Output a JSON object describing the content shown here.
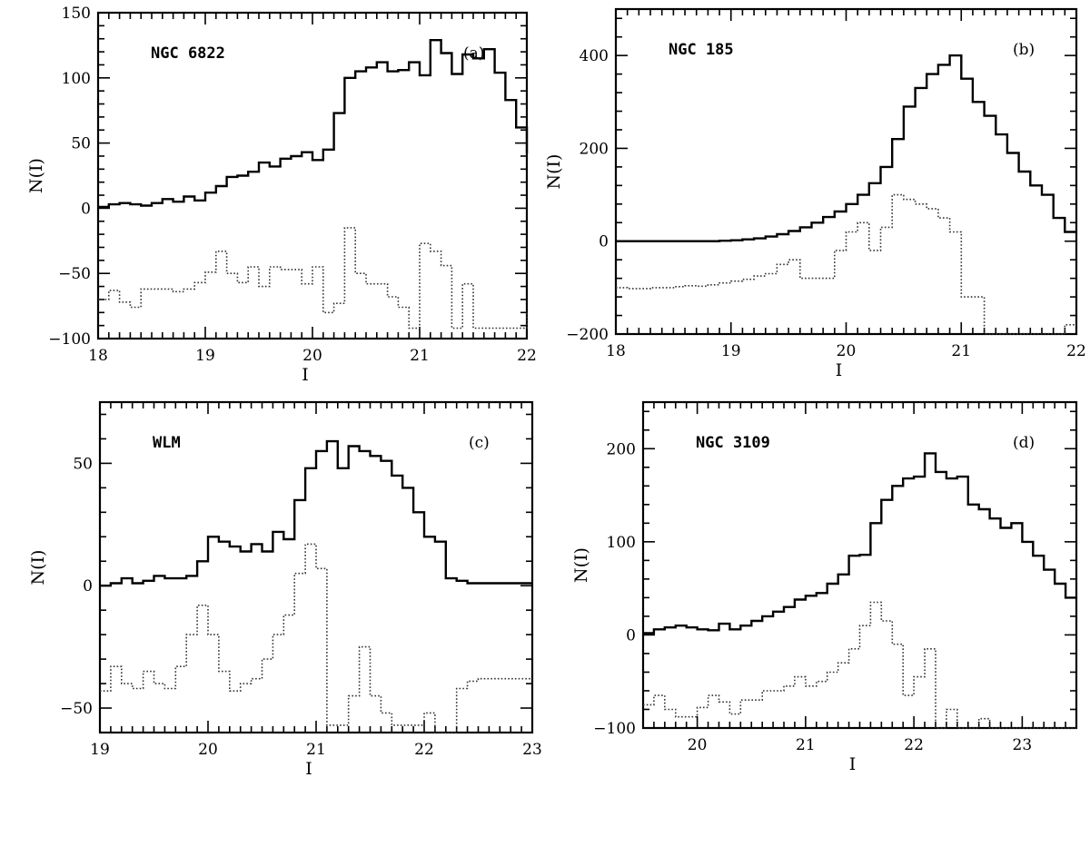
{
  "chart_data": [
    {
      "panel": "(a)",
      "type": "line",
      "step": true,
      "galaxy": "NGC 6822",
      "xlabel": "I",
      "ylabel": "N(I)",
      "xlim": [
        18,
        22
      ],
      "ylim": [
        -100,
        150
      ],
      "xticks": [
        18,
        19,
        20,
        21,
        22
      ],
      "yticks": [
        -100,
        -50,
        0,
        50,
        100,
        150
      ],
      "bin_start": 18.0,
      "bin_width": 0.1,
      "series": [
        {
          "style": "solid",
          "values": [
            1,
            3,
            4,
            3,
            2,
            4,
            7,
            5,
            9,
            6,
            12,
            17,
            24,
            25,
            28,
            35,
            32,
            38,
            40,
            43,
            37,
            45,
            73,
            100,
            105,
            108,
            112,
            105,
            106,
            112,
            102,
            129,
            119,
            103,
            118,
            115,
            122,
            104,
            83,
            62,
            42
          ]
        },
        {
          "style": "dotted",
          "values": [
            -70,
            -63,
            -72,
            -76,
            -62,
            -62,
            -62,
            -64,
            -62,
            -57,
            -49,
            -33,
            -50,
            -57,
            -45,
            -60,
            -45,
            -47,
            -47,
            -58,
            -45,
            -80,
            -73,
            -15,
            -50,
            -58,
            -58,
            -68,
            -76,
            -92,
            -27,
            -33,
            -44,
            -92,
            -58,
            -92,
            -92,
            -92,
            -92,
            -92,
            -80
          ]
        }
      ]
    },
    {
      "panel": "(b)",
      "type": "line",
      "step": true,
      "galaxy": "NGC 185",
      "xlabel": "I",
      "ylabel": "N(I)",
      "xlim": [
        18,
        22
      ],
      "ylim": [
        -200,
        500
      ],
      "xticks": [
        18,
        19,
        20,
        21,
        22
      ],
      "yticks": [
        -200,
        0,
        200,
        400
      ],
      "bin_start": 18.0,
      "bin_width": 0.1,
      "series": [
        {
          "style": "solid",
          "values": [
            0,
            0,
            0,
            0,
            0,
            0,
            0,
            0,
            0,
            1,
            2,
            4,
            6,
            10,
            15,
            22,
            30,
            40,
            52,
            64,
            80,
            100,
            125,
            160,
            220,
            290,
            330,
            360,
            380,
            400,
            350,
            300,
            270,
            230,
            190,
            150,
            120,
            100,
            50,
            20
          ]
        },
        {
          "style": "dotted",
          "values": [
            -100,
            -102,
            -102,
            -100,
            -100,
            -98,
            -96,
            -97,
            -94,
            -90,
            -86,
            -82,
            -75,
            -70,
            -50,
            -40,
            -80,
            -80,
            -80,
            -20,
            20,
            40,
            -20,
            30,
            100,
            90,
            80,
            70,
            50,
            20,
            -120,
            -120,
            -200,
            -200,
            -200,
            -200,
            -200,
            -200,
            -200,
            -180
          ]
        }
      ]
    },
    {
      "panel": "(c)",
      "type": "line",
      "step": true,
      "galaxy": "WLM",
      "xlabel": "I",
      "ylabel": "N(I)",
      "xlim": [
        19,
        23
      ],
      "ylim": [
        -60,
        75
      ],
      "xticks": [
        19,
        20,
        21,
        22,
        23
      ],
      "yticks": [
        -50,
        0,
        50
      ],
      "bin_start": 19.0,
      "bin_width": 0.1,
      "series": [
        {
          "style": "solid",
          "values": [
            0,
            1,
            3,
            1,
            2,
            4,
            3,
            3,
            4,
            10,
            20,
            18,
            16,
            14,
            17,
            14,
            22,
            19,
            35,
            48,
            55,
            59,
            48,
            57,
            55,
            53,
            51,
            45,
            40,
            30,
            20,
            18,
            3,
            2,
            1,
            1,
            1,
            1,
            1,
            1
          ]
        },
        {
          "style": "dotted",
          "values": [
            -43,
            -33,
            -40,
            -42,
            -35,
            -40,
            -42,
            -33,
            -20,
            -8,
            -20,
            -35,
            -43,
            -40,
            -38,
            -30,
            -20,
            -12,
            5,
            17,
            7,
            -57,
            -57,
            -45,
            -25,
            -45,
            -52,
            -57,
            -57,
            -57,
            -52,
            -60,
            -60,
            -42,
            -39,
            -38,
            -38,
            -38,
            -38,
            -38
          ]
        }
      ]
    },
    {
      "panel": "(d)",
      "type": "line",
      "step": true,
      "galaxy": "NGC 3109",
      "xlabel": "I",
      "ylabel": "N(I)",
      "xlim": [
        19.5,
        23.5
      ],
      "ylim": [
        -100,
        250
      ],
      "xticks": [
        20,
        21,
        22,
        23
      ],
      "yticks": [
        -100,
        0,
        100,
        200
      ],
      "bin_start": 19.5,
      "bin_width": 0.1,
      "series": [
        {
          "style": "solid",
          "values": [
            2,
            6,
            8,
            10,
            8,
            6,
            5,
            12,
            6,
            10,
            15,
            20,
            25,
            30,
            38,
            42,
            45,
            55,
            65,
            85,
            86,
            120,
            145,
            160,
            168,
            170,
            195,
            175,
            168,
            170,
            140,
            135,
            125,
            115,
            120,
            100,
            85,
            70,
            55,
            40
          ]
        },
        {
          "style": "dotted",
          "values": [
            -75,
            -65,
            -80,
            -88,
            -88,
            -78,
            -65,
            -72,
            -85,
            -70,
            -70,
            -60,
            -60,
            -55,
            -45,
            -55,
            -50,
            -40,
            -30,
            -15,
            10,
            35,
            15,
            -10,
            -65,
            -45,
            -15,
            -100,
            -80,
            -100,
            -100,
            -90,
            -100,
            -100,
            -100,
            -100,
            -100,
            -100,
            -100,
            -100
          ]
        }
      ]
    }
  ]
}
